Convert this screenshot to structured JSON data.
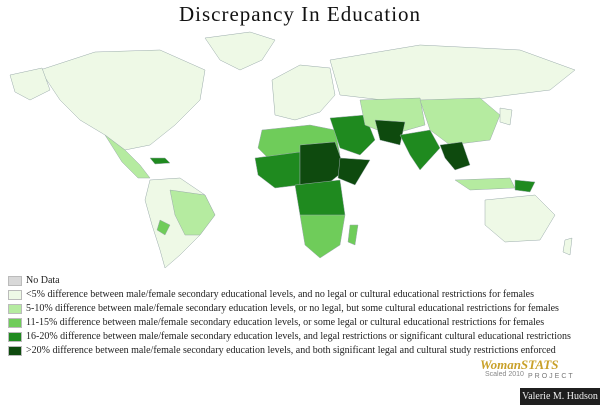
{
  "title": "Discrepancy In Education",
  "legend": [
    {
      "label": "No Data",
      "color": "#d8d8d8"
    },
    {
      "label": "<5% difference between male/female secondary educational levels, and no legal or cultural educational restrictions for females",
      "color": "#eef9e6"
    },
    {
      "label": "5-10% difference between male/female secondary education levels, or no legal, but some cultural educational restrictions for females",
      "color": "#b5eba0"
    },
    {
      "label": "11-15% difference between male/female secondary education levels, or some legal or cultural educational restrictions for females",
      "color": "#6fcc5a"
    },
    {
      "label": "16-20% difference between male/female secondary education levels, and legal restrictions or significant cultural educational restrictions",
      "color": "#1f8a1f"
    },
    {
      "label": ">20% difference between male/female secondary education levels, and both significant legal and cultural study restrictions enforced",
      "color": "#0e4a0e"
    }
  ],
  "logo": {
    "main": "WomanSTATS",
    "sub": "PROJECT"
  },
  "scaled_note": "Scaled 2010",
  "credit": "Valerie M. Hudson"
}
